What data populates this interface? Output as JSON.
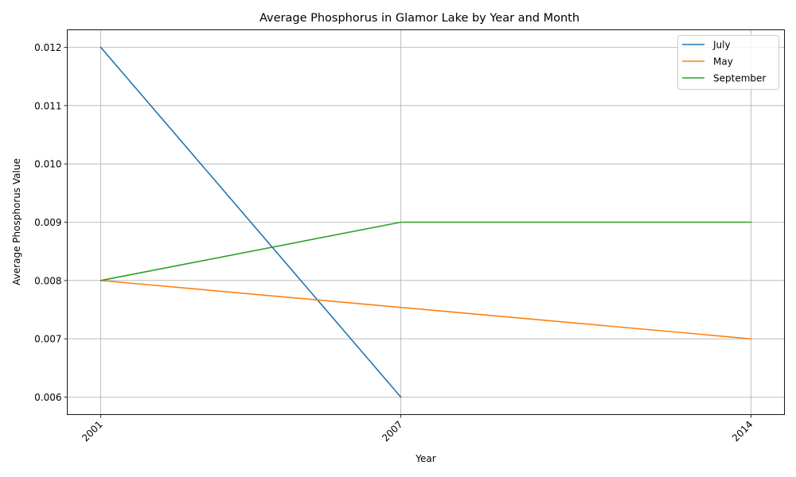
{
  "chart_data": {
    "type": "line",
    "title": "Average Phosphorus in Glamor Lake by Year and Month",
    "xlabel": "Year",
    "ylabel": "Average Phosphorus Value",
    "x_ticks": [
      2001,
      2007,
      2014
    ],
    "x_tick_labels": [
      "2001",
      "2007",
      "2014"
    ],
    "y_ticks": [
      0.006,
      0.007,
      0.008,
      0.009,
      0.01,
      0.011,
      0.012
    ],
    "y_tick_labels": [
      "0.006",
      "0.007",
      "0.008",
      "0.009",
      "0.010",
      "0.011",
      "0.012"
    ],
    "xlim": [
      2000.33,
      2014.67
    ],
    "ylim": [
      0.0057,
      0.0123
    ],
    "grid": true,
    "legend_position": "top-right",
    "series": [
      {
        "name": "July",
        "color": "#1f77b4",
        "points": [
          [
            2001,
            0.012
          ],
          [
            2007,
            0.006
          ]
        ]
      },
      {
        "name": "May",
        "color": "#ff7f0e",
        "points": [
          [
            2001,
            0.008
          ],
          [
            2014,
            0.007
          ]
        ]
      },
      {
        "name": "September",
        "color": "#2ca02c",
        "points": [
          [
            2001,
            0.008
          ],
          [
            2007,
            0.009
          ],
          [
            2014,
            0.009
          ]
        ]
      }
    ]
  }
}
